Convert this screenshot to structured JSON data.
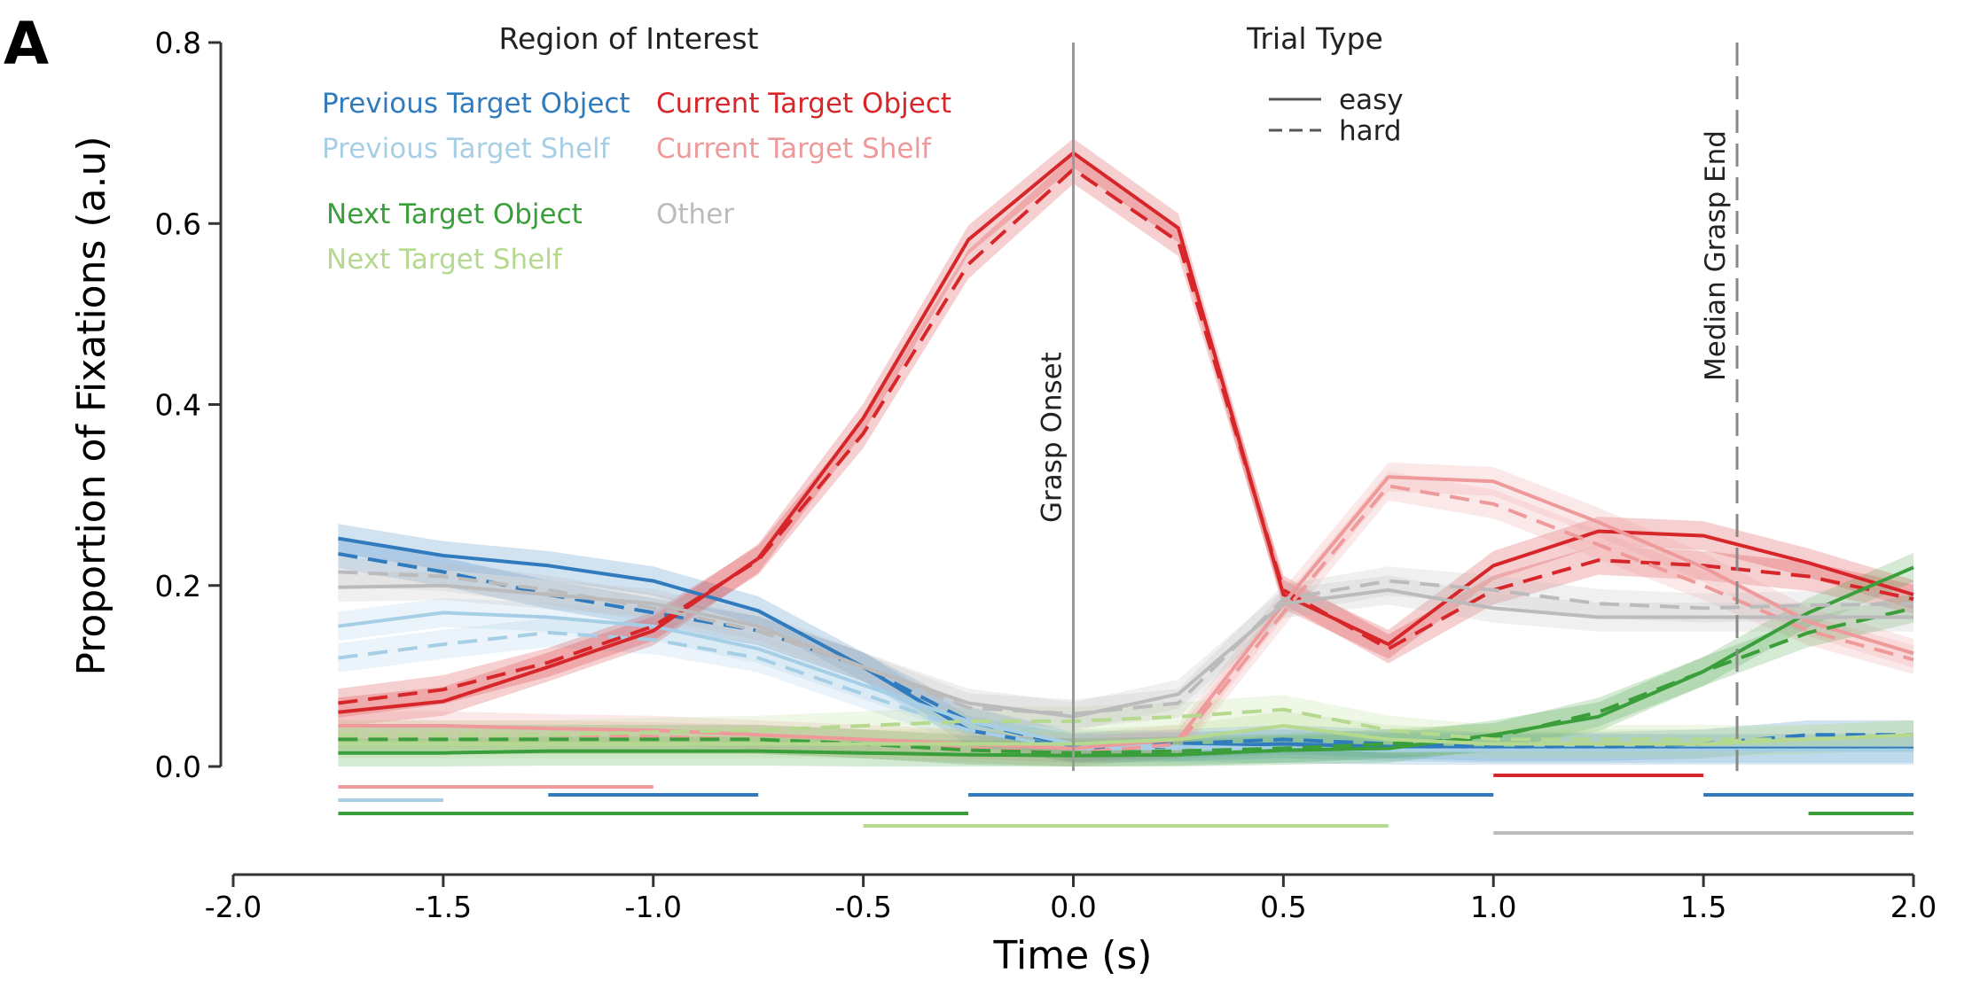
{
  "panel_label": "A",
  "chart_data": {
    "type": "line",
    "xlabel": "Time (s)",
    "ylabel": "Proportion of Fixations (a.u)",
    "xlim": [
      -2.0,
      2.0
    ],
    "ylim": [
      0.0,
      0.8
    ],
    "x_ticks": [
      -2.0,
      -1.5,
      -1.0,
      -0.5,
      0.0,
      0.5,
      1.0,
      1.5,
      2.0
    ],
    "x_tick_labels": [
      "-2.0",
      "-1.5",
      "-1.0",
      "-0.5",
      "0.0",
      "0.5",
      "1.0",
      "1.5",
      "2.0"
    ],
    "y_ticks": [
      0.0,
      0.2,
      0.4,
      0.6,
      0.8
    ],
    "y_tick_labels": [
      "0.0",
      "0.2",
      "0.4",
      "0.6",
      "0.8"
    ],
    "grid": false,
    "x": [
      -1.75,
      -1.5,
      -1.25,
      -1.0,
      -0.75,
      -0.5,
      -0.25,
      0.0,
      0.25,
      0.5,
      0.75,
      1.0,
      1.25,
      1.5,
      1.75,
      2.0
    ],
    "legend_roi_title": "Region of Interest",
    "legend_trial_title": "Trial Type",
    "legend_placement": "top",
    "trial_types": [
      {
        "label": "easy",
        "dash": "solid"
      },
      {
        "label": "hard",
        "dash": "dashed"
      }
    ],
    "regions": [
      {
        "key": "prev_obj",
        "label": "Previous Target Object",
        "color": "#2f7bbd",
        "easy": [
          0.252,
          0.233,
          0.222,
          0.205,
          0.172,
          0.11,
          0.04,
          0.02,
          0.022,
          0.025,
          0.022,
          0.02,
          0.02,
          0.02,
          0.02,
          0.02
        ],
        "hard": [
          0.235,
          0.215,
          0.19,
          0.17,
          0.15,
          0.11,
          0.05,
          0.022,
          0.025,
          0.03,
          0.025,
          0.022,
          0.022,
          0.025,
          0.035,
          0.035
        ]
      },
      {
        "key": "prev_shelf",
        "label": "Previous Target Shelf",
        "color": "#a6cfe6",
        "easy": [
          0.155,
          0.17,
          0.165,
          0.155,
          0.13,
          0.09,
          0.05,
          0.025,
          0.022,
          0.02,
          0.018,
          0.018,
          0.018,
          0.018,
          0.018,
          0.018
        ],
        "hard": [
          0.12,
          0.135,
          0.148,
          0.14,
          0.12,
          0.08,
          0.04,
          0.02,
          0.02,
          0.02,
          0.018,
          0.018,
          0.018,
          0.018,
          0.018,
          0.018
        ]
      },
      {
        "key": "cur_obj",
        "label": "Current Target Object",
        "color": "#d7262a",
        "easy": [
          0.06,
          0.072,
          0.11,
          0.15,
          0.23,
          0.385,
          0.582,
          0.678,
          0.595,
          0.19,
          0.135,
          0.222,
          0.26,
          0.255,
          0.225,
          0.19
        ],
        "hard": [
          0.07,
          0.085,
          0.115,
          0.155,
          0.228,
          0.368,
          0.555,
          0.66,
          0.58,
          0.195,
          0.13,
          0.195,
          0.228,
          0.222,
          0.21,
          0.185
        ]
      },
      {
        "key": "cur_shelf",
        "label": "Current Target Shelf",
        "color": "#ee9a9b",
        "easy": [
          0.045,
          0.045,
          0.042,
          0.04,
          0.035,
          0.03,
          0.025,
          0.02,
          0.03,
          0.18,
          0.32,
          0.315,
          0.27,
          0.22,
          0.16,
          0.125
        ],
        "hard": [
          0.035,
          0.035,
          0.035,
          0.033,
          0.03,
          0.025,
          0.02,
          0.015,
          0.025,
          0.17,
          0.31,
          0.29,
          0.245,
          0.2,
          0.15,
          0.118
        ]
      },
      {
        "key": "next_obj",
        "label": "Next Target Object",
        "color": "#3a9e3a",
        "easy": [
          0.015,
          0.015,
          0.017,
          0.017,
          0.017,
          0.015,
          0.013,
          0.012,
          0.013,
          0.018,
          0.02,
          0.035,
          0.055,
          0.105,
          0.17,
          0.22
        ],
        "hard": [
          0.03,
          0.03,
          0.03,
          0.03,
          0.03,
          0.025,
          0.018,
          0.015,
          0.017,
          0.02,
          0.025,
          0.032,
          0.06,
          0.105,
          0.148,
          0.175
        ]
      },
      {
        "key": "next_shelf",
        "label": "Next Target Shelf",
        "color": "#b5d98f",
        "easy": [
          0.025,
          0.025,
          0.025,
          0.025,
          0.025,
          0.025,
          0.025,
          0.025,
          0.03,
          0.045,
          0.03,
          0.025,
          0.025,
          0.025,
          0.03,
          0.035
        ],
        "hard": [
          0.035,
          0.035,
          0.035,
          0.038,
          0.04,
          0.045,
          0.05,
          0.05,
          0.055,
          0.063,
          0.04,
          0.03,
          0.03,
          0.03,
          0.03,
          0.035
        ]
      },
      {
        "key": "other",
        "label": "Other",
        "color": "#bbbbbb",
        "easy": [
          0.198,
          0.2,
          0.19,
          0.18,
          0.155,
          0.11,
          0.07,
          0.055,
          0.08,
          0.18,
          0.195,
          0.175,
          0.165,
          0.165,
          0.165,
          0.165
        ],
        "hard": [
          0.215,
          0.21,
          0.195,
          0.175,
          0.15,
          0.11,
          0.065,
          0.058,
          0.07,
          0.185,
          0.205,
          0.195,
          0.18,
          0.175,
          0.178,
          0.18
        ]
      }
    ],
    "vertical_markers": [
      {
        "label": "Grasp Onset",
        "x": 0.0,
        "style": "solid"
      },
      {
        "label": "Median Grasp End",
        "x": 1.58,
        "style": "dashed"
      }
    ],
    "significance_bars": [
      {
        "region": "cur_shelf",
        "start": -1.75,
        "end": -1.0
      },
      {
        "region": "cur_obj",
        "start": 1.0,
        "end": 1.5
      },
      {
        "region": "prev_shelf",
        "start": -1.75,
        "end": -1.5
      },
      {
        "region": "prev_obj",
        "start": -1.25,
        "end": -0.75
      },
      {
        "region": "prev_obj",
        "start": -0.25,
        "end": 1.0
      },
      {
        "region": "prev_obj",
        "start": 1.5,
        "end": 2.0
      },
      {
        "region": "next_obj",
        "start": -1.75,
        "end": -0.25
      },
      {
        "region": "next_obj",
        "start": 1.75,
        "end": 2.0
      },
      {
        "region": "next_shelf",
        "start": -0.5,
        "end": 0.75
      },
      {
        "region": "other",
        "start": 1.0,
        "end": 2.0
      }
    ]
  }
}
